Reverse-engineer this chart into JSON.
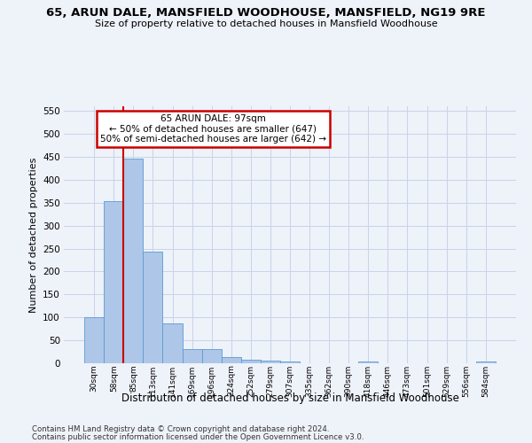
{
  "title": "65, ARUN DALE, MANSFIELD WOODHOUSE, MANSFIELD, NG19 9RE",
  "subtitle": "Size of property relative to detached houses in Mansfield Woodhouse",
  "xlabel": "Distribution of detached houses by size in Mansfield Woodhouse",
  "ylabel": "Number of detached properties",
  "footer_line1": "Contains HM Land Registry data © Crown copyright and database right 2024.",
  "footer_line2": "Contains public sector information licensed under the Open Government Licence v3.0.",
  "categories": [
    "30sqm",
    "58sqm",
    "85sqm",
    "113sqm",
    "141sqm",
    "169sqm",
    "196sqm",
    "224sqm",
    "252sqm",
    "279sqm",
    "307sqm",
    "335sqm",
    "362sqm",
    "390sqm",
    "418sqm",
    "446sqm",
    "473sqm",
    "501sqm",
    "529sqm",
    "556sqm",
    "584sqm"
  ],
  "values": [
    101,
    353,
    447,
    244,
    87,
    30,
    30,
    13,
    8,
    5,
    4,
    0,
    0,
    0,
    4,
    0,
    0,
    0,
    0,
    0,
    4
  ],
  "bar_color": "#aec6e8",
  "bar_edge_color": "#5b9bd5",
  "grid_color": "#c8d4e8",
  "vline_color": "#cc0000",
  "vline_x_index": 2,
  "annotation_line1": "65 ARUN DALE: 97sqm",
  "annotation_line2": "← 50% of detached houses are smaller (647)",
  "annotation_line3": "50% of semi-detached houses are larger (642) →",
  "annotation_box_color": "#ffffff",
  "annotation_box_edge_color": "#cc0000",
  "ylim": [
    0,
    560
  ],
  "yticks": [
    0,
    50,
    100,
    150,
    200,
    250,
    300,
    350,
    400,
    450,
    500,
    550
  ],
  "background_color": "#eef2f9",
  "fig_width": 6.0,
  "fig_height": 5.0,
  "dpi": 100
}
